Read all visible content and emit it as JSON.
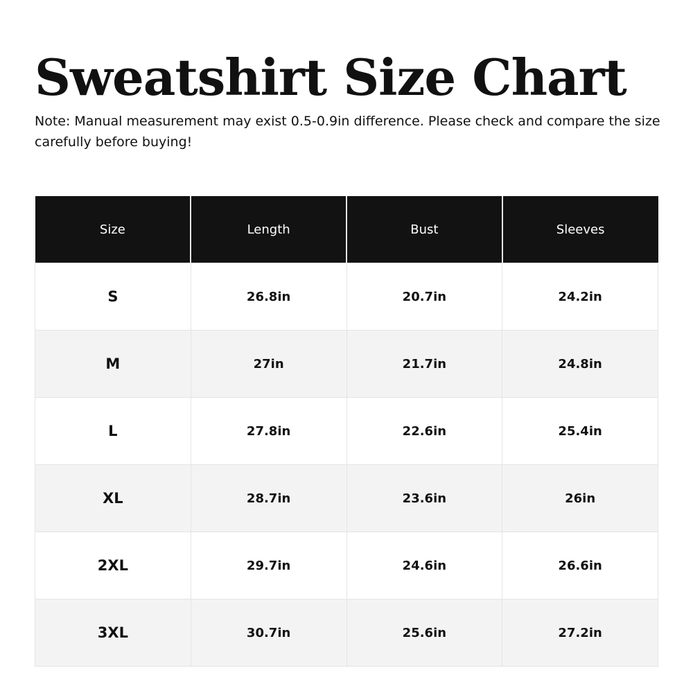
{
  "title": "Sweatshirt Size Chart",
  "note": "Note: Manual measurement may exist 0.5-0.9in difference. Please check and compare the size carefully before buying!",
  "table": {
    "headers": [
      "Size",
      "Length",
      "Bust",
      "Sleeves"
    ],
    "rows": [
      [
        "S",
        "26.8in",
        "20.7in",
        "24.2in"
      ],
      [
        "M",
        "27in",
        "21.7in",
        "24.8in"
      ],
      [
        "L",
        "27.8in",
        "22.6in",
        "25.4in"
      ],
      [
        "XL",
        "28.7in",
        "23.6in",
        "26in"
      ],
      [
        "2XL",
        "29.7in",
        "24.6in",
        "26.6in"
      ],
      [
        "3XL",
        "30.7in",
        "25.6in",
        "27.2in"
      ]
    ]
  },
  "colors": {
    "header_bg": "#121212",
    "header_text": "#ffffff",
    "alt_row_bg": "#f3f3f3",
    "border": "#e4e4e4"
  }
}
